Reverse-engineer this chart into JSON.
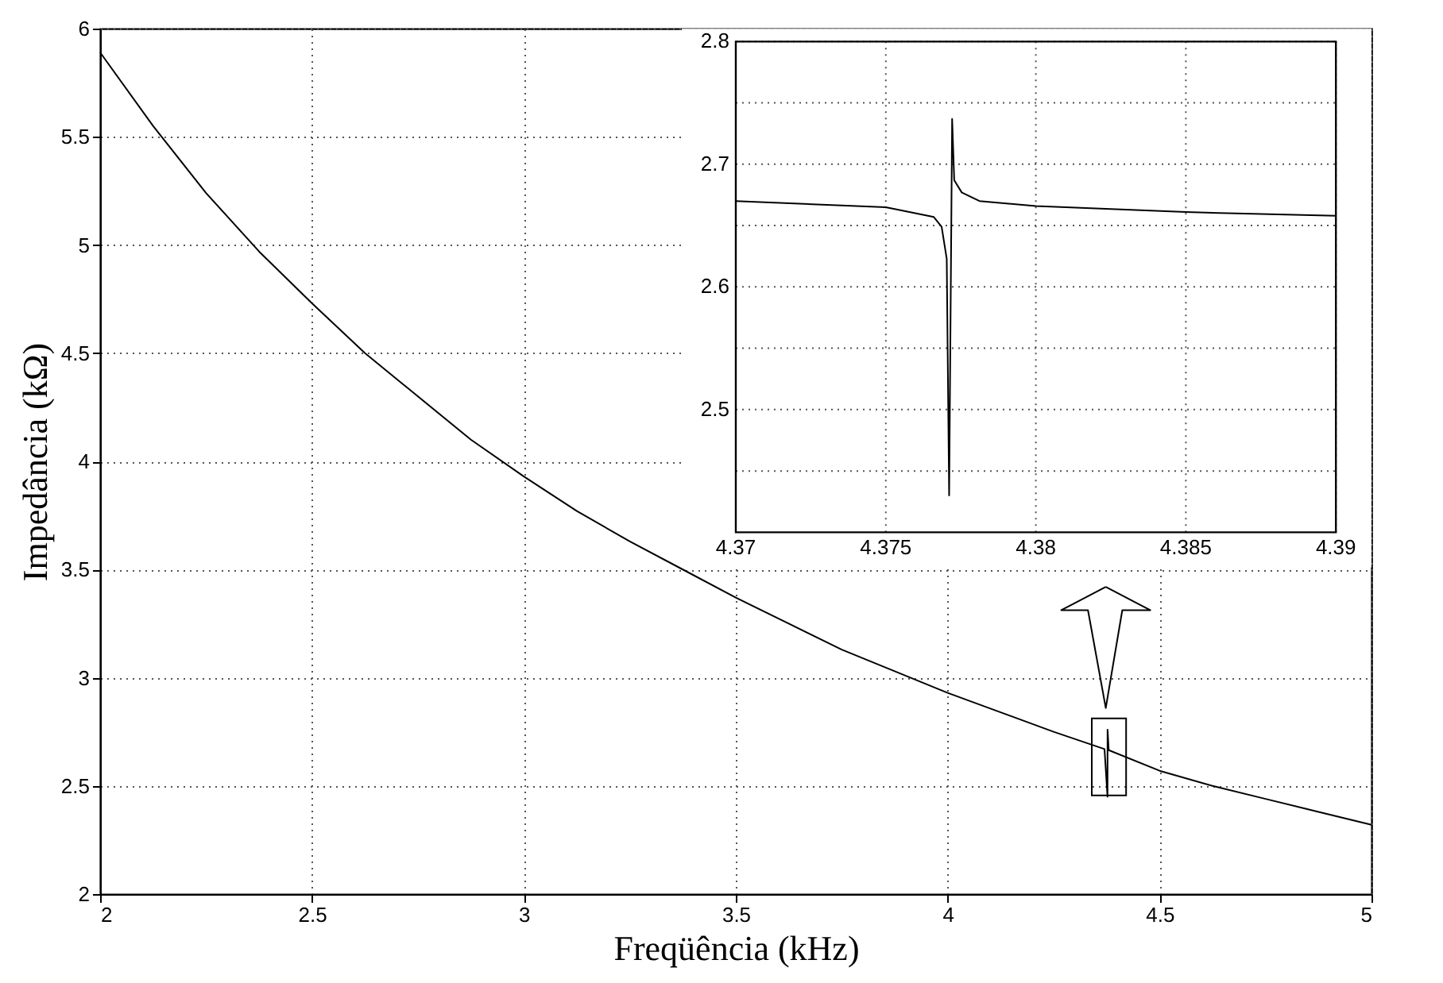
{
  "chart_data": [
    {
      "type": "line",
      "xlabel": "Freqüência (kHz)",
      "ylabel": "Impedância (kΩ)",
      "grid": true,
      "x": [
        2,
        2.125,
        2.25,
        2.375,
        2.5,
        2.625,
        2.75,
        2.875,
        3,
        3.125,
        3.25,
        3.375,
        3.5,
        3.625,
        3.75,
        3.875,
        4,
        4.125,
        4.25,
        4.37,
        4.3771,
        4.3772,
        4.38,
        4.5,
        4.625,
        4.75,
        4.875,
        5
      ],
      "series": [
        {
          "color": "#000000",
          "values": [
            5.89,
            5.55,
            5.24,
            4.97,
            4.73,
            4.5,
            4.3,
            4.1,
            3.93,
            3.77,
            3.63,
            3.5,
            3.37,
            3.25,
            3.13,
            3.03,
            2.93,
            2.84,
            2.75,
            2.67,
            2.45,
            2.76,
            2.665,
            2.57,
            2.5,
            2.44,
            2.38,
            2.32
          ]
        }
      ],
      "xlim": [
        2,
        5
      ],
      "ylim": [
        2,
        6
      ],
      "xticks": [
        2,
        2.5,
        3,
        3.5,
        4,
        4.5,
        5
      ],
      "yticks": [
        2,
        2.5,
        3,
        3.5,
        4,
        4.5,
        5,
        5.5,
        6
      ]
    },
    {
      "type": "line",
      "grid": true,
      "x": [
        4.37,
        4.375,
        4.3766,
        4.37686,
        4.37703,
        4.37711,
        4.37721,
        4.37728,
        4.37753,
        4.37812,
        4.38,
        4.385,
        4.39
      ],
      "series": [
        {
          "color": "#000000",
          "values": [
            2.67,
            2.665,
            2.657,
            2.649,
            2.623,
            2.43,
            2.737,
            2.687,
            2.677,
            2.67,
            2.666,
            2.661,
            2.658
          ]
        }
      ],
      "xlim": [
        4.37,
        4.39
      ],
      "ylim": [
        2.4,
        2.8
      ],
      "xticks": [
        4.37,
        4.375,
        4.38,
        4.385,
        4.39
      ],
      "yticks": [
        {
          "value": 2.45,
          "label": null
        },
        2.5,
        {
          "value": 2.55,
          "label": null
        },
        2.6,
        {
          "value": 2.65,
          "label": null
        },
        2.7,
        {
          "value": 2.75,
          "label": null
        },
        2.8
      ]
    }
  ]
}
